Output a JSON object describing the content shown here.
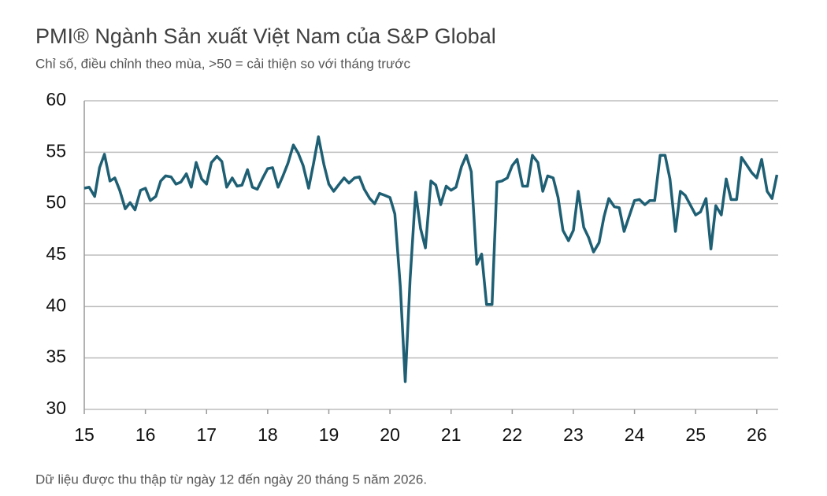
{
  "chart_data": {
    "type": "line",
    "title": "PMI® Ngành Sản xuất Việt Nam của S&P Global",
    "subtitle": "Chỉ số, điều chỉnh theo mùa, >50 = cải thiện so với tháng trước",
    "note": "Dữ liệu được thu thập từ ngày 12 đến ngày 20 tháng 5 năm 2026.",
    "x": [
      15,
      15.08,
      15.17,
      15.25,
      15.33,
      15.42,
      15.5,
      15.58,
      15.67,
      15.75,
      15.83,
      15.92,
      16,
      16.08,
      16.17,
      16.25,
      16.33,
      16.42,
      16.5,
      16.58,
      16.67,
      16.75,
      16.83,
      16.92,
      17,
      17.08,
      17.17,
      17.25,
      17.33,
      17.42,
      17.5,
      17.58,
      17.67,
      17.75,
      17.83,
      17.92,
      18,
      18.08,
      18.17,
      18.25,
      18.33,
      18.42,
      18.5,
      18.58,
      18.67,
      18.75,
      18.83,
      18.92,
      19,
      19.08,
      19.17,
      19.25,
      19.33,
      19.42,
      19.5,
      19.58,
      19.67,
      19.75,
      19.83,
      19.92,
      20,
      20.08,
      20.17,
      20.25,
      20.33,
      20.42,
      20.5,
      20.58,
      20.67,
      20.75,
      20.83,
      20.92,
      21,
      21.08,
      21.17,
      21.25,
      21.33,
      21.42,
      21.5,
      21.58,
      21.67,
      21.75,
      21.83,
      21.92,
      22,
      22.08,
      22.17,
      22.25,
      22.33,
      22.42,
      22.5,
      22.58,
      22.67,
      22.75,
      22.83,
      22.92,
      23,
      23.08,
      23.17,
      23.25,
      23.33,
      23.42,
      23.5,
      23.58,
      23.67,
      23.75,
      23.83,
      23.92,
      24,
      24.08,
      24.17,
      24.25,
      24.33,
      24.42,
      24.5,
      24.58,
      24.67,
      24.75,
      24.83,
      24.92,
      25,
      25.08,
      25.17,
      25.25,
      25.33,
      25.42,
      25.5,
      25.58,
      25.67,
      25.75,
      25.83,
      25.92,
      26,
      26.08,
      26.17,
      26.25,
      26.33
    ],
    "series": [
      {
        "color": "#1e5f74",
        "values": [
          51.5,
          51.6,
          50.7,
          53.5,
          54.8,
          52.2,
          52.5,
          51.3,
          49.5,
          50.1,
          49.4,
          51.3,
          51.5,
          50.3,
          50.7,
          52.2,
          52.7,
          52.6,
          51.9,
          52.1,
          52.9,
          51.6,
          54.0,
          52.4,
          51.9,
          54.0,
          54.6,
          54.1,
          51.6,
          52.5,
          51.7,
          51.8,
          53.3,
          51.6,
          51.4,
          52.5,
          53.4,
          53.5,
          51.6,
          52.7,
          53.9,
          55.7,
          54.9,
          53.7,
          51.5,
          53.9,
          56.5,
          53.8,
          51.9,
          51.2,
          51.9,
          52.5,
          52.0,
          52.5,
          52.6,
          51.4,
          50.5,
          50.0,
          51.0,
          50.8,
          50.6,
          49.0,
          41.9,
          32.7,
          42.7,
          51.1,
          47.6,
          45.7,
          52.2,
          51.8,
          49.9,
          51.7,
          51.3,
          51.6,
          53.6,
          54.7,
          53.1,
          44.1,
          45.1,
          40.2,
          40.2,
          52.1,
          52.2,
          52.5,
          53.7,
          54.3,
          51.7,
          51.7,
          54.7,
          54.0,
          51.2,
          52.7,
          52.5,
          50.6,
          47.4,
          46.4,
          47.4,
          51.2,
          47.7,
          46.7,
          45.3,
          46.2,
          48.7,
          50.5,
          49.7,
          49.6,
          47.3,
          48.9,
          50.3,
          50.4,
          49.9,
          50.3,
          50.3,
          54.7,
          54.7,
          52.4,
          47.3,
          51.2,
          50.8,
          49.8,
          48.9,
          49.2,
          50.5,
          45.6,
          49.8,
          48.9,
          52.4,
          50.4,
          50.4,
          54.5,
          53.8,
          53.0,
          52.5,
          54.3,
          51.2,
          50.5,
          52.8
        ]
      }
    ],
    "xlim": [
      15,
      26.35
    ],
    "xticks": [
      15,
      16,
      17,
      18,
      19,
      20,
      21,
      22,
      23,
      24,
      25,
      26
    ],
    "ylim": [
      30,
      60
    ],
    "yticks": [
      30,
      35,
      40,
      45,
      50,
      55,
      60
    ],
    "grid": true
  }
}
